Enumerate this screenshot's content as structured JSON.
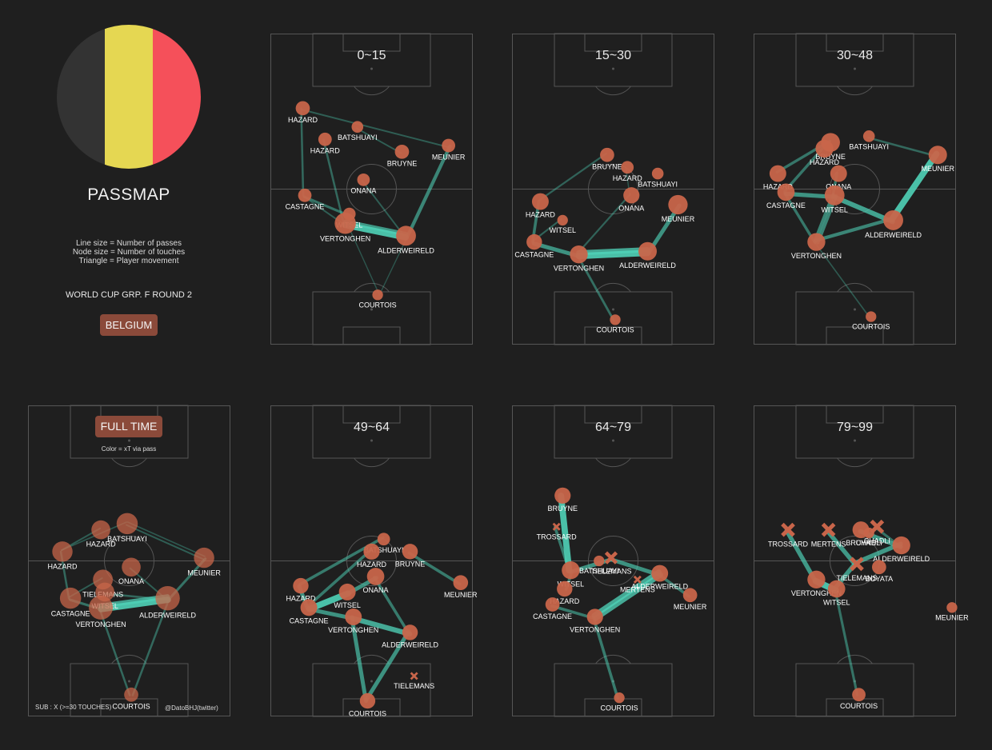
{
  "header": {
    "title": "PASSMAP",
    "legend_lines": [
      "Line size = Number of passes",
      "Node size = Number of touches",
      "Triangle = Player movement"
    ],
    "match": "WORLD CUP GRP. F ROUND 2",
    "team": "BELGIUM",
    "full_time_label": "FULL TIME",
    "full_time_note": "Color = xT via pass",
    "sub_note": "SUB : X (>=30 TOUCHES)",
    "credit": "@DatoBHJ(twitter)"
  },
  "colors": {
    "background": "#1f1f1f",
    "flag_black": "#333333",
    "flag_yellow": "#e5d752",
    "flag_red": "#f5505a",
    "node": "#c8654a",
    "edge": "#4fd1b7",
    "badge": "#8b4a3a",
    "pitch_line": "#555555"
  },
  "chart_data": [
    {
      "type": "network",
      "panel": "0~15",
      "title": "0~15",
      "nodes": [
        {
          "name": "HAZARD",
          "x": 0.16,
          "y": 0.24,
          "touches": 14
        },
        {
          "name": "HAZARD",
          "x": 0.27,
          "y": 0.34,
          "touches": 12
        },
        {
          "name": "BATSHUAYI",
          "x": 0.43,
          "y": 0.3,
          "touches": 8
        },
        {
          "name": "BRUYNE",
          "x": 0.65,
          "y": 0.38,
          "touches": 14
        },
        {
          "name": "MEUNIER",
          "x": 0.88,
          "y": 0.36,
          "touches": 12
        },
        {
          "name": "ONANA",
          "x": 0.46,
          "y": 0.47,
          "touches": 10
        },
        {
          "name": "CASTAGNE",
          "x": 0.17,
          "y": 0.52,
          "touches": 12
        },
        {
          "name": "WITSEL",
          "x": 0.39,
          "y": 0.58,
          "touches": 10
        },
        {
          "name": "VERTONGHEN",
          "x": 0.37,
          "y": 0.61,
          "touches": 40
        },
        {
          "name": "ALDERWEIRELD",
          "x": 0.67,
          "y": 0.65,
          "touches": 34
        },
        {
          "name": "COURTOIS",
          "x": 0.53,
          "y": 0.84,
          "touches": 6
        }
      ],
      "edges": [
        {
          "from": 8,
          "to": 9,
          "passes": 12
        },
        {
          "from": 9,
          "to": 8,
          "passes": 8
        },
        {
          "from": 9,
          "to": 4,
          "passes": 6
        },
        {
          "from": 6,
          "to": 7,
          "passes": 4
        },
        {
          "from": 0,
          "to": 6,
          "passes": 3
        },
        {
          "from": 1,
          "to": 8,
          "passes": 3
        },
        {
          "from": 2,
          "to": 3,
          "passes": 2
        },
        {
          "from": 0,
          "to": 4,
          "passes": 2
        },
        {
          "from": 5,
          "to": 9,
          "passes": 2
        },
        {
          "from": 6,
          "to": 8,
          "passes": 2
        },
        {
          "from": 10,
          "to": 8,
          "passes": 1
        },
        {
          "from": 10,
          "to": 9,
          "passes": 1
        }
      ]
    },
    {
      "type": "network",
      "panel": "15~30",
      "title": "15~30",
      "nodes": [
        {
          "name": "BRUYNE",
          "x": 0.47,
          "y": 0.39,
          "touches": 14
        },
        {
          "name": "HAZARD",
          "x": 0.57,
          "y": 0.43,
          "touches": 10
        },
        {
          "name": "BATSHUAYI",
          "x": 0.72,
          "y": 0.45,
          "touches": 8
        },
        {
          "name": "ONANA",
          "x": 0.59,
          "y": 0.52,
          "touches": 20
        },
        {
          "name": "MEUNIER",
          "x": 0.82,
          "y": 0.55,
          "touches": 32
        },
        {
          "name": "HAZARD",
          "x": 0.14,
          "y": 0.54,
          "touches": 22
        },
        {
          "name": "WITSEL",
          "x": 0.25,
          "y": 0.6,
          "touches": 6
        },
        {
          "name": "CASTAGNE",
          "x": 0.11,
          "y": 0.67,
          "touches": 18
        },
        {
          "name": "VERTONGHEN",
          "x": 0.33,
          "y": 0.71,
          "touches": 26
        },
        {
          "name": "ALDERWEIRELD",
          "x": 0.67,
          "y": 0.7,
          "touches": 28
        },
        {
          "name": "COURTOIS",
          "x": 0.51,
          "y": 0.92,
          "touches": 6
        }
      ],
      "edges": [
        {
          "from": 8,
          "to": 9,
          "passes": 10
        },
        {
          "from": 9,
          "to": 8,
          "passes": 8
        },
        {
          "from": 9,
          "to": 4,
          "passes": 6
        },
        {
          "from": 7,
          "to": 8,
          "passes": 6
        },
        {
          "from": 5,
          "to": 7,
          "passes": 4
        },
        {
          "from": 8,
          "to": 10,
          "passes": 3
        },
        {
          "from": 3,
          "to": 8,
          "passes": 2
        },
        {
          "from": 0,
          "to": 5,
          "passes": 2
        },
        {
          "from": 6,
          "to": 7,
          "passes": 2
        },
        {
          "from": 1,
          "to": 3,
          "passes": 1
        }
      ]
    },
    {
      "type": "network",
      "panel": "30~48",
      "title": "30~48",
      "nodes": [
        {
          "name": "BRUYNE",
          "x": 0.38,
          "y": 0.35,
          "touches": 30
        },
        {
          "name": "HAZARD",
          "x": 0.35,
          "y": 0.37,
          "touches": 26
        },
        {
          "name": "BATSHUAYI",
          "x": 0.57,
          "y": 0.33,
          "touches": 8
        },
        {
          "name": "MEUNIER",
          "x": 0.91,
          "y": 0.39,
          "touches": 28
        },
        {
          "name": "ONANA",
          "x": 0.42,
          "y": 0.45,
          "touches": 22
        },
        {
          "name": "HAZARD",
          "x": 0.12,
          "y": 0.45,
          "touches": 22
        },
        {
          "name": "CASTAGNE",
          "x": 0.16,
          "y": 0.51,
          "touches": 24
        },
        {
          "name": "WITSEL",
          "x": 0.4,
          "y": 0.52,
          "touches": 34
        },
        {
          "name": "ALDERWEIRELD",
          "x": 0.69,
          "y": 0.6,
          "touches": 34
        },
        {
          "name": "VERTONGHEN",
          "x": 0.31,
          "y": 0.67,
          "touches": 26
        },
        {
          "name": "COURTOIS",
          "x": 0.58,
          "y": 0.91,
          "touches": 6
        }
      ],
      "edges": [
        {
          "from": 3,
          "to": 8,
          "passes": 8
        },
        {
          "from": 7,
          "to": 8,
          "passes": 6
        },
        {
          "from": 6,
          "to": 7,
          "passes": 5
        },
        {
          "from": 9,
          "to": 7,
          "passes": 4
        },
        {
          "from": 7,
          "to": 9,
          "passes": 4
        },
        {
          "from": 8,
          "to": 9,
          "passes": 4
        },
        {
          "from": 0,
          "to": 5,
          "passes": 3
        },
        {
          "from": 4,
          "to": 7,
          "passes": 3
        },
        {
          "from": 1,
          "to": 6,
          "passes": 3
        },
        {
          "from": 2,
          "to": 3,
          "passes": 2
        },
        {
          "from": 9,
          "to": 10,
          "passes": 1
        },
        {
          "from": 6,
          "to": 9,
          "passes": 3
        }
      ]
    },
    {
      "type": "network",
      "panel": "FULL TIME",
      "title": "",
      "nodes": [
        {
          "name": "BATSHUAYI",
          "x": 0.49,
          "y": 0.38,
          "touches": 40
        },
        {
          "name": "HAZARD",
          "x": 0.36,
          "y": 0.4,
          "touches": 30
        },
        {
          "name": "HAZARD",
          "x": 0.17,
          "y": 0.47,
          "touches": 36
        },
        {
          "name": "MEUNIER",
          "x": 0.87,
          "y": 0.49,
          "touches": 36
        },
        {
          "name": "ONANA",
          "x": 0.51,
          "y": 0.52,
          "touches": 30
        },
        {
          "name": "TIELEMANS",
          "x": 0.37,
          "y": 0.56,
          "touches": 34
        },
        {
          "name": "WITSEL",
          "x": 0.38,
          "y": 0.6,
          "touches": 30
        },
        {
          "name": "CASTAGNE",
          "x": 0.21,
          "y": 0.62,
          "touches": 40
        },
        {
          "name": "ALDERWEIRELD",
          "x": 0.69,
          "y": 0.62,
          "touches": 56
        },
        {
          "name": "VERTONGHEN",
          "x": 0.36,
          "y": 0.65,
          "touches": 54
        },
        {
          "name": "COURTOIS",
          "x": 0.51,
          "y": 0.93,
          "touches": 14
        }
      ],
      "edges": [
        {
          "from": 9,
          "to": 8,
          "passes": 24
        },
        {
          "from": 8,
          "to": 9,
          "passes": 18
        },
        {
          "from": 9,
          "to": 10,
          "passes": 6
        },
        {
          "from": 10,
          "to": 8,
          "passes": 6
        },
        {
          "from": 8,
          "to": 3,
          "passes": 8
        },
        {
          "from": 7,
          "to": 9,
          "passes": 8
        },
        {
          "from": 2,
          "to": 7,
          "passes": 6
        },
        {
          "from": 0,
          "to": 3,
          "passes": 4
        },
        {
          "from": 1,
          "to": 2,
          "passes": 4
        },
        {
          "from": 6,
          "to": 8,
          "passes": 6
        },
        {
          "from": 4,
          "to": 8,
          "passes": 4
        },
        {
          "from": 5,
          "to": 7,
          "passes": 4
        },
        {
          "from": 0,
          "to": 2,
          "passes": 3
        },
        {
          "from": 3,
          "to": 0,
          "passes": 3
        }
      ]
    },
    {
      "type": "network",
      "panel": "49~64",
      "title": "49~64",
      "nodes": [
        {
          "name": "BATSHUAYI",
          "x": 0.56,
          "y": 0.43,
          "touches": 10
        },
        {
          "name": "HAZARD",
          "x": 0.5,
          "y": 0.47,
          "touches": 20
        },
        {
          "name": "BRUYNE",
          "x": 0.69,
          "y": 0.47,
          "touches": 18
        },
        {
          "name": "MEUNIER",
          "x": 0.94,
          "y": 0.57,
          "touches": 16
        },
        {
          "name": "ONANA",
          "x": 0.52,
          "y": 0.55,
          "touches": 24
        },
        {
          "name": "HAZARD",
          "x": 0.15,
          "y": 0.58,
          "touches": 18
        },
        {
          "name": "WITSEL",
          "x": 0.38,
          "y": 0.6,
          "touches": 22
        },
        {
          "name": "CASTAGNE",
          "x": 0.19,
          "y": 0.65,
          "touches": 22
        },
        {
          "name": "VERTONGHEN",
          "x": 0.41,
          "y": 0.68,
          "touches": 22
        },
        {
          "name": "ALDERWEIRELD",
          "x": 0.69,
          "y": 0.73,
          "touches": 18
        },
        {
          "name": "TIELEMANS",
          "x": 0.71,
          "y": 0.87,
          "touches": 6,
          "sub": true
        },
        {
          "name": "COURTOIS",
          "x": 0.48,
          "y": 0.95,
          "touches": 18
        }
      ],
      "edges": [
        {
          "from": 7,
          "to": 6,
          "passes": 5
        },
        {
          "from": 8,
          "to": 9,
          "passes": 4
        },
        {
          "from": 9,
          "to": 11,
          "passes": 3
        },
        {
          "from": 8,
          "to": 11,
          "passes": 3
        },
        {
          "from": 5,
          "to": 7,
          "passes": 3
        },
        {
          "from": 6,
          "to": 4,
          "passes": 3
        },
        {
          "from": 1,
          "to": 7,
          "passes": 2
        },
        {
          "from": 2,
          "to": 3,
          "passes": 2
        },
        {
          "from": 0,
          "to": 5,
          "passes": 2
        },
        {
          "from": 4,
          "to": 9,
          "passes": 2
        },
        {
          "from": 7,
          "to": 8,
          "passes": 3
        }
      ]
    },
    {
      "type": "network",
      "panel": "64~79",
      "title": "64~79",
      "nodes": [
        {
          "name": "BRUYNE",
          "x": 0.25,
          "y": 0.29,
          "touches": 20
        },
        {
          "name": "TROSSARD",
          "x": 0.22,
          "y": 0.39,
          "touches": 6,
          "sub": true
        },
        {
          "name": "BATSHUAYI",
          "x": 0.43,
          "y": 0.5,
          "touches": 6
        },
        {
          "name": "TIELEMANS",
          "x": 0.49,
          "y": 0.49,
          "touches": 24,
          "sub": true
        },
        {
          "name": "WITSEL",
          "x": 0.29,
          "y": 0.53,
          "touches": 26
        },
        {
          "name": "MERTENS",
          "x": 0.62,
          "y": 0.56,
          "touches": 6,
          "sub": true
        },
        {
          "name": "ALDERWEIRELD",
          "x": 0.73,
          "y": 0.54,
          "touches": 22
        },
        {
          "name": "HAZARD",
          "x": 0.26,
          "y": 0.59,
          "touches": 18
        },
        {
          "name": "MEUNIER",
          "x": 0.88,
          "y": 0.61,
          "touches": 14
        },
        {
          "name": "CASTAGNE",
          "x": 0.2,
          "y": 0.64,
          "touches": 14
        },
        {
          "name": "VERTONGHEN",
          "x": 0.41,
          "y": 0.68,
          "touches": 20
        },
        {
          "name": "COURTOIS",
          "x": 0.53,
          "y": 0.94,
          "touches": 6
        }
      ],
      "edges": [
        {
          "from": 0,
          "to": 4,
          "passes": 5
        },
        {
          "from": 10,
          "to": 6,
          "passes": 4
        },
        {
          "from": 6,
          "to": 10,
          "passes": 4
        },
        {
          "from": 4,
          "to": 3,
          "passes": 3
        },
        {
          "from": 9,
          "to": 10,
          "passes": 2
        },
        {
          "from": 3,
          "to": 6,
          "passes": 3
        },
        {
          "from": 10,
          "to": 11,
          "passes": 2
        },
        {
          "from": 7,
          "to": 4,
          "passes": 2
        },
        {
          "from": 6,
          "to": 8,
          "passes": 2
        },
        {
          "from": 1,
          "to": 4,
          "passes": 2
        }
      ]
    },
    {
      "type": "network",
      "panel": "79~99",
      "title": "79~99",
      "nodes": [
        {
          "name": "TROSSARD",
          "x": 0.17,
          "y": 0.4,
          "touches": 30,
          "sub": true
        },
        {
          "name": "MERTENS",
          "x": 0.37,
          "y": 0.4,
          "touches": 30,
          "sub": true
        },
        {
          "name": "BRUYNE",
          "x": 0.53,
          "y": 0.4,
          "touches": 22
        },
        {
          "name": "CHADLI",
          "x": 0.61,
          "y": 0.39,
          "touches": 30,
          "sub": true
        },
        {
          "name": "CHADLI",
          "x": 0.57,
          "y": 0.41,
          "touches": 6
        },
        {
          "name": "ALDERWEIRELD",
          "x": 0.73,
          "y": 0.45,
          "touches": 26
        },
        {
          "name": "TIELEMANS",
          "x": 0.51,
          "y": 0.51,
          "touches": 30,
          "sub": true
        },
        {
          "name": "BOYATA",
          "x": 0.62,
          "y": 0.52,
          "touches": 14
        },
        {
          "name": "VERTONGHEN",
          "x": 0.31,
          "y": 0.56,
          "touches": 26
        },
        {
          "name": "WITSEL",
          "x": 0.41,
          "y": 0.59,
          "touches": 24
        },
        {
          "name": "MEUNIER",
          "x": 0.98,
          "y": 0.65,
          "touches": 6
        },
        {
          "name": "COURTOIS",
          "x": 0.52,
          "y": 0.93,
          "touches": 12
        }
      ],
      "edges": [
        {
          "from": 8,
          "to": 9,
          "passes": 3
        },
        {
          "from": 0,
          "to": 8,
          "passes": 2
        },
        {
          "from": 2,
          "to": 5,
          "passes": 2
        },
        {
          "from": 1,
          "to": 6,
          "passes": 2
        },
        {
          "from": 5,
          "to": 6,
          "passes": 2
        },
        {
          "from": 6,
          "to": 9,
          "passes": 2
        },
        {
          "from": 9,
          "to": 11,
          "passes": 1
        },
        {
          "from": 3,
          "to": 5,
          "passes": 1
        }
      ]
    }
  ]
}
